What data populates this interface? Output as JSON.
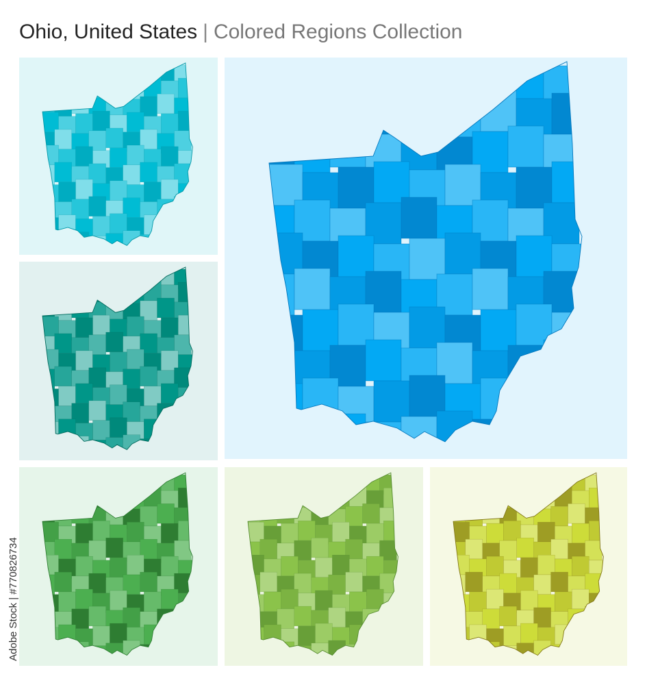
{
  "header": {
    "title": "Ohio, United States",
    "separator": "|",
    "subtitle": "Colored Regions Collection"
  },
  "watermark": "Adobe Stock | #770826734"
}
